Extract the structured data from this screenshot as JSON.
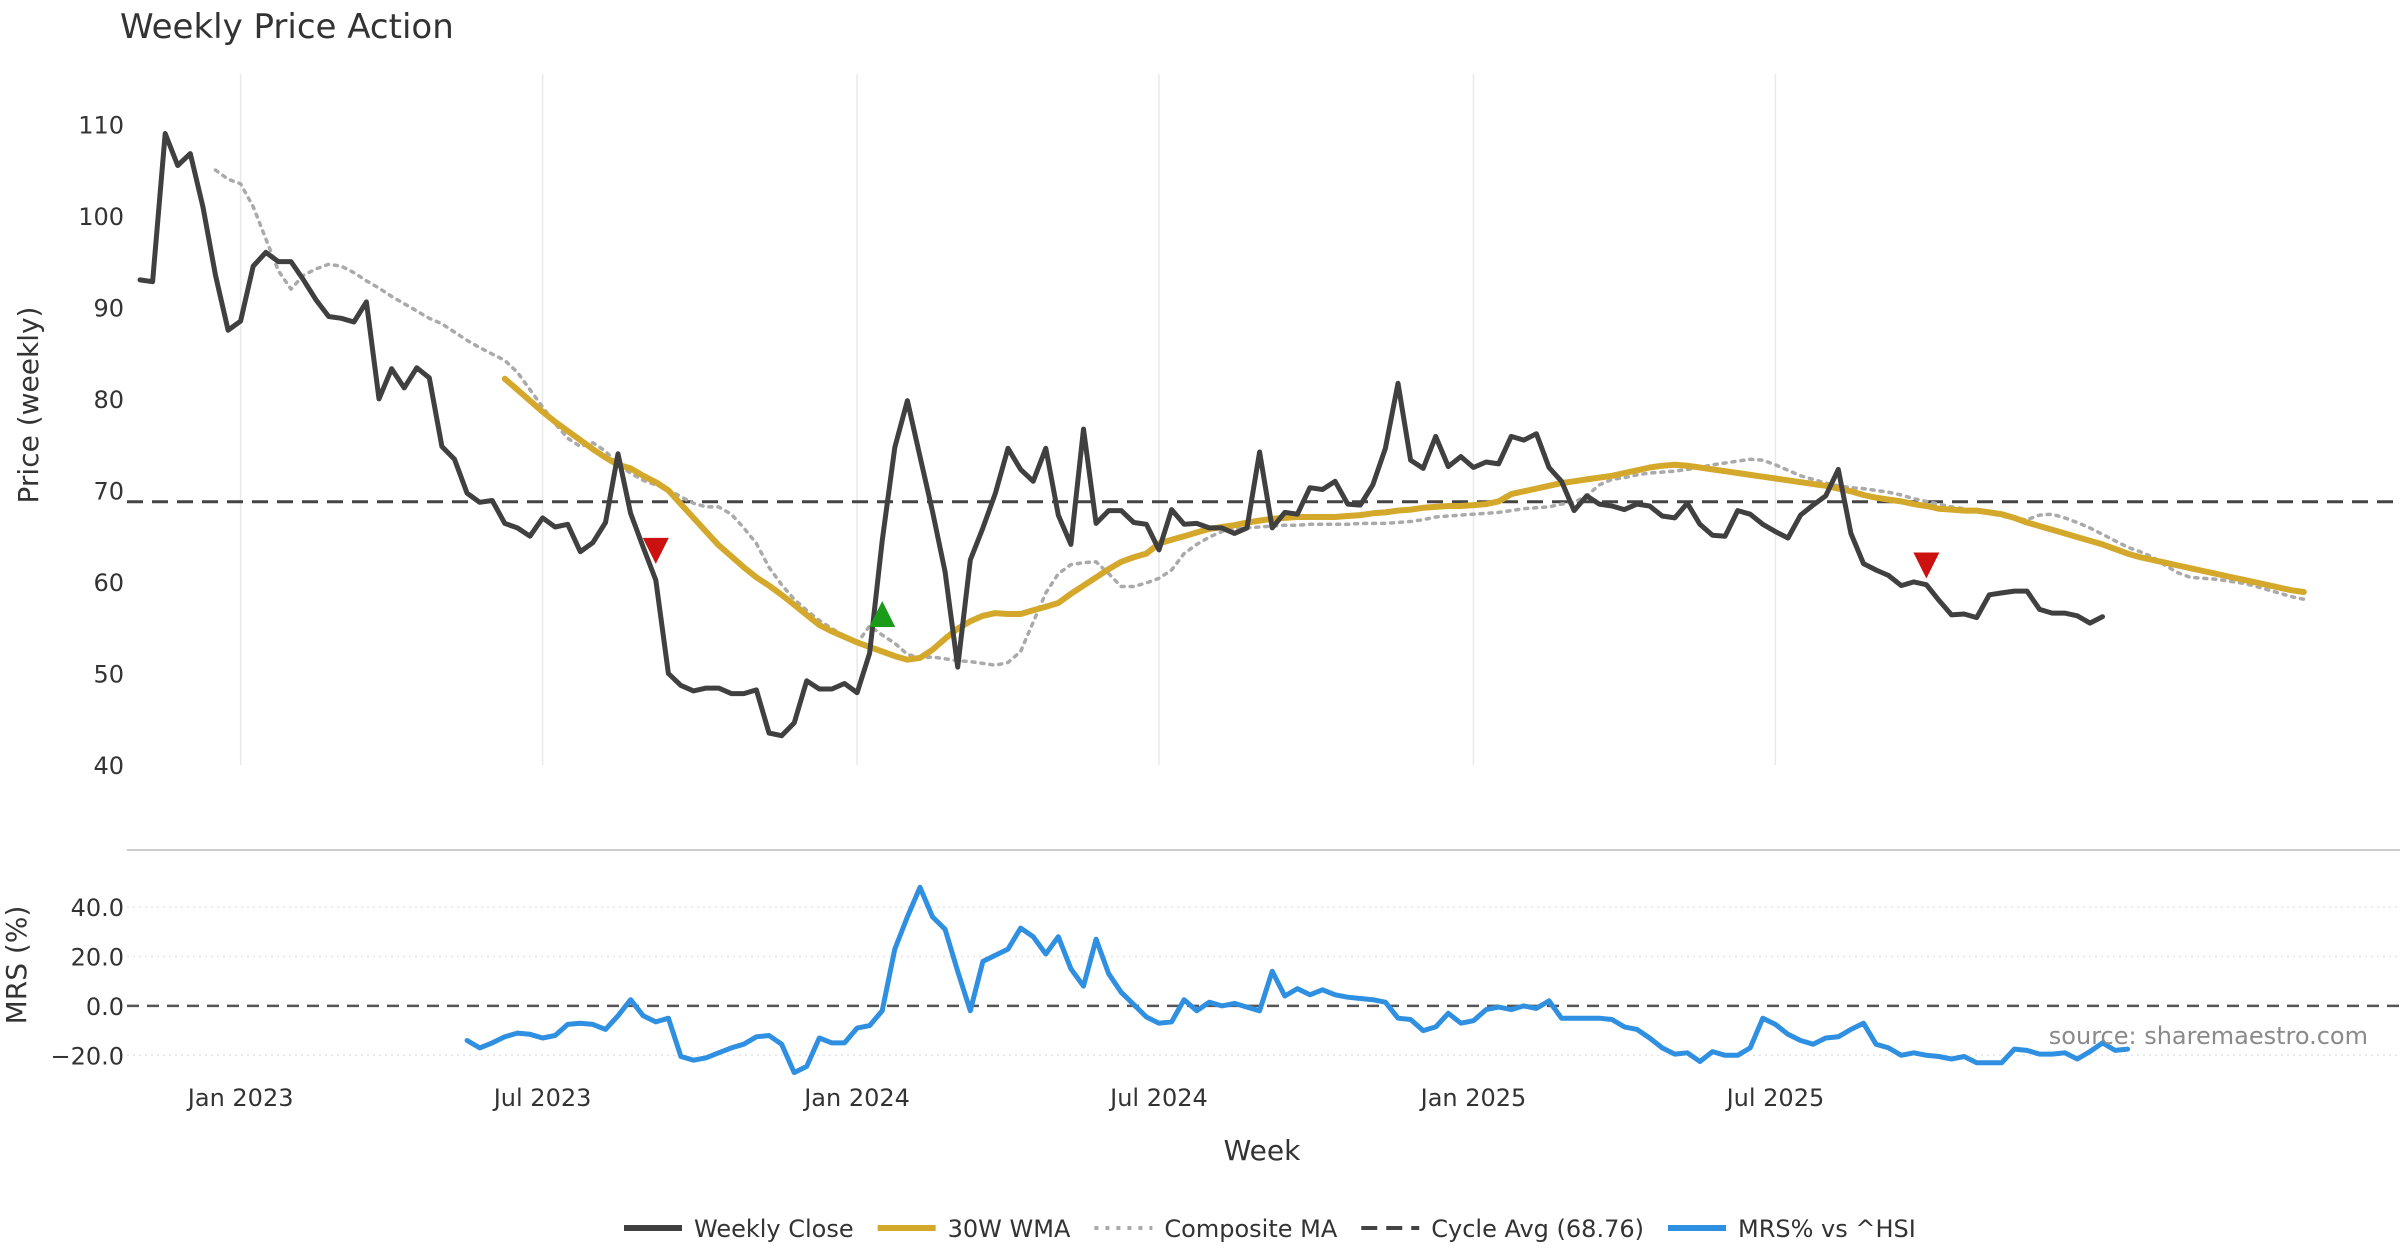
{
  "chart_data": {
    "type": "line",
    "title": "Weekly Price Action",
    "xlabel": "Week",
    "source": "source: sharemaestro.com",
    "price_panel": {
      "ylabel": "Price (weekly)",
      "ylim": [
        40,
        112
      ],
      "yticks": [
        {
          "value": 40,
          "label": "40"
        },
        {
          "value": 50,
          "label": "50"
        },
        {
          "value": 60,
          "label": "60"
        },
        {
          "value": 70,
          "label": "70"
        },
        {
          "value": 80,
          "label": "80"
        },
        {
          "value": 90,
          "label": "90"
        },
        {
          "value": 100,
          "label": "100"
        },
        {
          "value": 110,
          "label": "110"
        }
      ],
      "cycle_avg": 68.76,
      "series": [
        {
          "name": "Weekly Close",
          "color": "#404040",
          "start": 0,
          "values": [
            93,
            92.8,
            109,
            105.5,
            106.8,
            101,
            93.5,
            87.5,
            88.5,
            94.5,
            96,
            95,
            95,
            93,
            90.8,
            89,
            88.8,
            88.4,
            90.6,
            80,
            83.3,
            81.2,
            83.4,
            82.3,
            74.8,
            73.4,
            69.7,
            68.7,
            68.9,
            66.4,
            65.9,
            65,
            67,
            66,
            66.3,
            63.3,
            64.3,
            66.5,
            74,
            67.5,
            63.8,
            60.2,
            50,
            48.7,
            48.1,
            48.4,
            48.4,
            47.8,
            47.8,
            48.2,
            43.5,
            43.2,
            44.6,
            49.2,
            48.3,
            48.3,
            48.9,
            47.9,
            52.2,
            64.5,
            74.7,
            79.8,
            73.7,
            67.7,
            61.1,
            50.7,
            62.4,
            65.9,
            69.7,
            74.6,
            72.3,
            71,
            74.6,
            67.3,
            64.1,
            76.7,
            66.4,
            67.8,
            67.8,
            66.5,
            66.3,
            63.5,
            67.9,
            66.3,
            66.4,
            65.9,
            65.9,
            65.3,
            65.9,
            74.2,
            65.9,
            67.6,
            67.4,
            70.3,
            70.1,
            71,
            68.5,
            68.4,
            70.6,
            74.6,
            81.7,
            73.3,
            72.4,
            75.9,
            72.6,
            73.7,
            72.5,
            73.1,
            72.9,
            75.9,
            75.5,
            76.2,
            72.5,
            71,
            67.8,
            69.4,
            68.5,
            68.3,
            67.9,
            68.5,
            68.3,
            67.2,
            67,
            68.6,
            66.3,
            65.1,
            65,
            67.8,
            67.4,
            66.3,
            65.5,
            64.8,
            67.3,
            68.4,
            69.4,
            72.3,
            65.3,
            62,
            61.3,
            60.7,
            59.6,
            60,
            59.7,
            58,
            56.4,
            56.5,
            56.1,
            58.6,
            58.8,
            59,
            59,
            57,
            56.6,
            56.6,
            56.3,
            55.5,
            56.2
          ]
        },
        {
          "name": "30W WMA",
          "color": "#d4a82a",
          "start": 29,
          "values": [
            82.2,
            81,
            79.8,
            78.6,
            77.5,
            76.5,
            75.5,
            74.5,
            73.6,
            72.8,
            72.4,
            71.6,
            70.9,
            70,
            68.5,
            67,
            65.5,
            64,
            62.8,
            61.6,
            60.5,
            59.6,
            58.6,
            57.5,
            56.4,
            55.3,
            54.6,
            54,
            53.4,
            52.9,
            52.4,
            51.9,
            51.5,
            51.7,
            52.6,
            53.8,
            54.9,
            55.7,
            56.3,
            56.6,
            56.5,
            56.5,
            56.9,
            57.3,
            57.7,
            58.7,
            59.6,
            60.5,
            61.4,
            62.2,
            62.7,
            63.1,
            64.2,
            64.6,
            65,
            65.4,
            65.8,
            66,
            66.2,
            66.5,
            66.7,
            66.9,
            67,
            67.1,
            67.1,
            67.1,
            67.1,
            67.2,
            67.3,
            67.5,
            67.6,
            67.8,
            67.9,
            68.1,
            68.2,
            68.3,
            68.3,
            68.4,
            68.5,
            68.8,
            69.6,
            69.9,
            70.2,
            70.5,
            70.8,
            71,
            71.2,
            71.4,
            71.6,
            71.9,
            72.2,
            72.5,
            72.7,
            72.8,
            72.7,
            72.5,
            72.3,
            72.1,
            71.9,
            71.7,
            71.5,
            71.3,
            71.1,
            70.9,
            70.7,
            70.5,
            70.2,
            69.9,
            69.5,
            69.2,
            69,
            68.8,
            68.5,
            68.3,
            68,
            67.9,
            67.8,
            67.8,
            67.6,
            67.4,
            67,
            66.5,
            66.1,
            65.7,
            65.3,
            64.9,
            64.5,
            64.1,
            63.6,
            63.1,
            62.7,
            62.4,
            62.1,
            61.8,
            61.5,
            61.2,
            60.9,
            60.6,
            60.3,
            60,
            59.7,
            59.4,
            59.1,
            58.9
          ]
        },
        {
          "name": "Composite MA",
          "color": "#aaaaaa",
          "start": 6,
          "values": [
            105,
            104,
            103.5,
            101,
            97.5,
            94,
            92,
            93.5,
            94.2,
            94.7,
            94.5,
            93.8,
            92.9,
            92.1,
            91.2,
            90.4,
            89.6,
            88.8,
            88.2,
            87.3,
            86.4,
            85.6,
            84.9,
            84.2,
            82.9,
            81,
            79.1,
            77.3,
            75.7,
            74.8,
            75.2,
            74.3,
            72.8,
            71.9,
            71.1,
            70.6,
            70.1,
            69.3,
            68.6,
            68.2,
            68.2,
            67.4,
            65.9,
            64.2,
            61.6,
            59.7,
            58.1,
            56.9,
            55.8,
            54.9,
            54.1,
            53.3,
            55.2,
            54.2,
            53.3,
            52.1,
            51.7,
            51.8,
            51.6,
            51.4,
            51.3,
            51.1,
            50.9,
            51.2,
            52.4,
            55.6,
            58.8,
            60.9,
            61.9,
            62.1,
            62.2,
            60.9,
            59.5,
            59.5,
            59.9,
            60.4,
            61.3,
            63.1,
            64.1,
            64.9,
            65.5,
            65.8,
            65.9,
            66,
            66.1,
            66.2,
            66.2,
            66.3,
            66.3,
            66.3,
            66.3,
            66.4,
            66.4,
            66.4,
            66.5,
            66.6,
            66.8,
            67.1,
            67.2,
            67.3,
            67.4,
            67.5,
            67.6,
            67.8,
            68,
            68.1,
            68.2,
            68.5,
            68.7,
            69.4,
            70.6,
            71.2,
            71.4,
            71.7,
            71.9,
            72,
            72.1,
            72.3,
            72.5,
            72.8,
            73,
            73.2,
            73.4,
            73.3,
            72.8,
            72.2,
            71.6,
            71.2,
            70.8,
            70.5,
            70.3,
            70.2,
            70,
            69.8,
            69.5,
            69.1,
            68.8,
            68.5,
            68.2,
            68,
            67.8,
            67.5,
            67.2,
            66.9,
            66.8,
            67.3,
            67.4,
            67,
            66.5,
            65.9,
            65.2,
            64.5,
            63.8,
            63.3,
            62.7,
            61.8,
            61,
            60.5,
            60.4,
            60.3,
            60.1,
            59.9,
            59.6,
            59.2,
            58.8,
            58.4,
            58.1
          ]
        }
      ],
      "markers": [
        {
          "type": "sell",
          "x": 41,
          "y": 63.4,
          "color": "#cc1111"
        },
        {
          "type": "buy",
          "x": 59,
          "y": 56.5,
          "color": "#1a9c1a"
        },
        {
          "type": "sell",
          "x": 142,
          "y": 61.8,
          "color": "#cc1111"
        }
      ]
    },
    "mrs_panel": {
      "ylabel": "MRS (%)",
      "ylim": [
        -30,
        55
      ],
      "yticks": [
        {
          "value": 40,
          "label": "40.0"
        },
        {
          "value": 20,
          "label": "20.0"
        },
        {
          "value": 0,
          "label": "0.0"
        },
        {
          "value": -20,
          "label": "−20.0"
        }
      ],
      "series": {
        "name": "MRS% vs ^HSI",
        "color": "#2f8fe0",
        "start": 26,
        "values": [
          -14,
          -17,
          -15,
          -12.5,
          -11,
          -11.5,
          -13,
          -12,
          -7.5,
          -7,
          -7.5,
          -9.5,
          -4,
          2.5,
          -4,
          -6.5,
          -5,
          -20.5,
          -22,
          -21,
          -19,
          -17,
          -15.5,
          -12.5,
          -12,
          -15.5,
          -27,
          -24.5,
          -13,
          -15,
          -15,
          -9,
          -8,
          -2,
          23,
          36,
          48,
          36,
          31,
          14,
          -2,
          18,
          20.5,
          23,
          31.5,
          28,
          21,
          28,
          15,
          8,
          27,
          13,
          5.5,
          0.5,
          -4.5,
          -7,
          -6.5,
          2.5,
          -2,
          1.5,
          0,
          1,
          -0.5,
          -2,
          14,
          4,
          7,
          4.5,
          6.5,
          4.5,
          3.5,
          3,
          2.5,
          1.5,
          -5,
          -5.5,
          -10,
          -8.5,
          -3,
          -7,
          -6,
          -1.5,
          -0.5,
          -1.5,
          0,
          -1,
          2,
          -5,
          -5,
          -5,
          -5,
          -5.5,
          -8.5,
          -9.5,
          -13,
          -17,
          -19.5,
          -19,
          -22.5,
          -18.5,
          -20,
          -20,
          -17,
          -5,
          -7.5,
          -11.5,
          -14,
          -15.5,
          -13,
          -12.5,
          -9.5,
          -7,
          -15.5,
          -17,
          -20,
          -19,
          -20,
          -20.5,
          -21.5,
          -20.5,
          -23,
          -23,
          -23,
          -17.5,
          -18,
          -19.5,
          -19.5,
          -19,
          -21.5,
          -18.5,
          -15,
          -18,
          -17.5
        ]
      }
    },
    "xaxis": {
      "n_weeks": 154,
      "ticks": [
        {
          "x": 8,
          "label": "Jan 2023"
        },
        {
          "x": 32,
          "label": "Jul 2023"
        },
        {
          "x": 57,
          "label": "Jan 2024"
        },
        {
          "x": 81,
          "label": "Jul 2024"
        },
        {
          "x": 106,
          "label": "Jan 2025"
        },
        {
          "x": 130,
          "label": "Jul 2025"
        }
      ]
    },
    "legend": [
      {
        "label": "Weekly Close",
        "color": "#404040",
        "style": "solid"
      },
      {
        "label": "30W WMA",
        "color": "#d4a82a",
        "style": "solid"
      },
      {
        "label": "Composite MA",
        "color": "#aaaaaa",
        "style": "dotted"
      },
      {
        "label": "Cycle Avg (68.76)",
        "color": "#444444",
        "style": "dashed"
      },
      {
        "label": "MRS% vs ^HSI",
        "color": "#2f8fe0",
        "style": "solid"
      }
    ]
  }
}
